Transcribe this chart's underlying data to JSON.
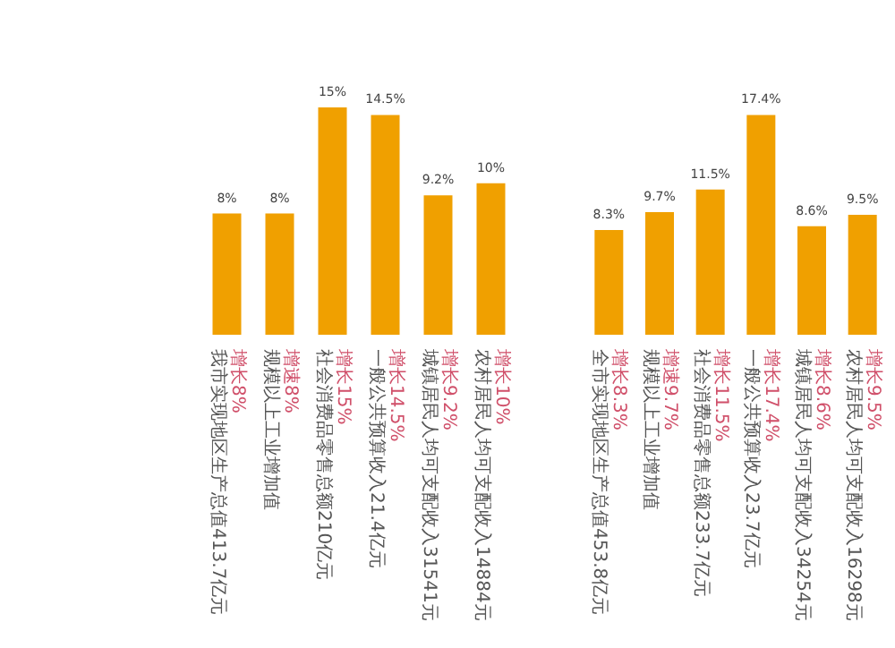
{
  "chart_data": [
    {
      "type": "bar",
      "categories": [
        "增长8%\n我市实现地区生产总值413.7亿元",
        "增速8%\n规模以上工业增加值",
        "增长15%\n社会消费品零售总额210亿元",
        "增长14.5%\n一般公共预算收入21.4亿元",
        "增长9.2%\n城镇居民人均可支配收入31541元",
        "增长10%\n农村居民人均可支配收入14884元"
      ],
      "values": [
        8,
        8,
        15,
        14.5,
        9.2,
        10
      ],
      "color": "#f0a000",
      "value_labels": [
        "8%",
        "8%",
        "15%",
        "14.5%",
        "9.2%",
        "10%"
      ]
    },
    {
      "type": "bar",
      "categories": [
        "增长8.3%\n全市实现地区生产总值453.8亿元",
        "增速9.7%\n规模以上工业增加值",
        "增长11.5%\n社会消费品零售总额233.7亿元",
        "增长17.4%\n一般公共预算收入23.7亿元",
        "增长8.6%\n城镇居民人均可支配收入34254元",
        "增长9.5%\n农村居民人均可支配收入16298元"
      ],
      "values": [
        8.3,
        9.7,
        11.5,
        17.4,
        8.6,
        9.5
      ],
      "color": "#f0a000",
      "value_labels": [
        "8.3%",
        "9.7%",
        "11.5%",
        "17.4%",
        "8.6%",
        "9.5%"
      ]
    }
  ]
}
